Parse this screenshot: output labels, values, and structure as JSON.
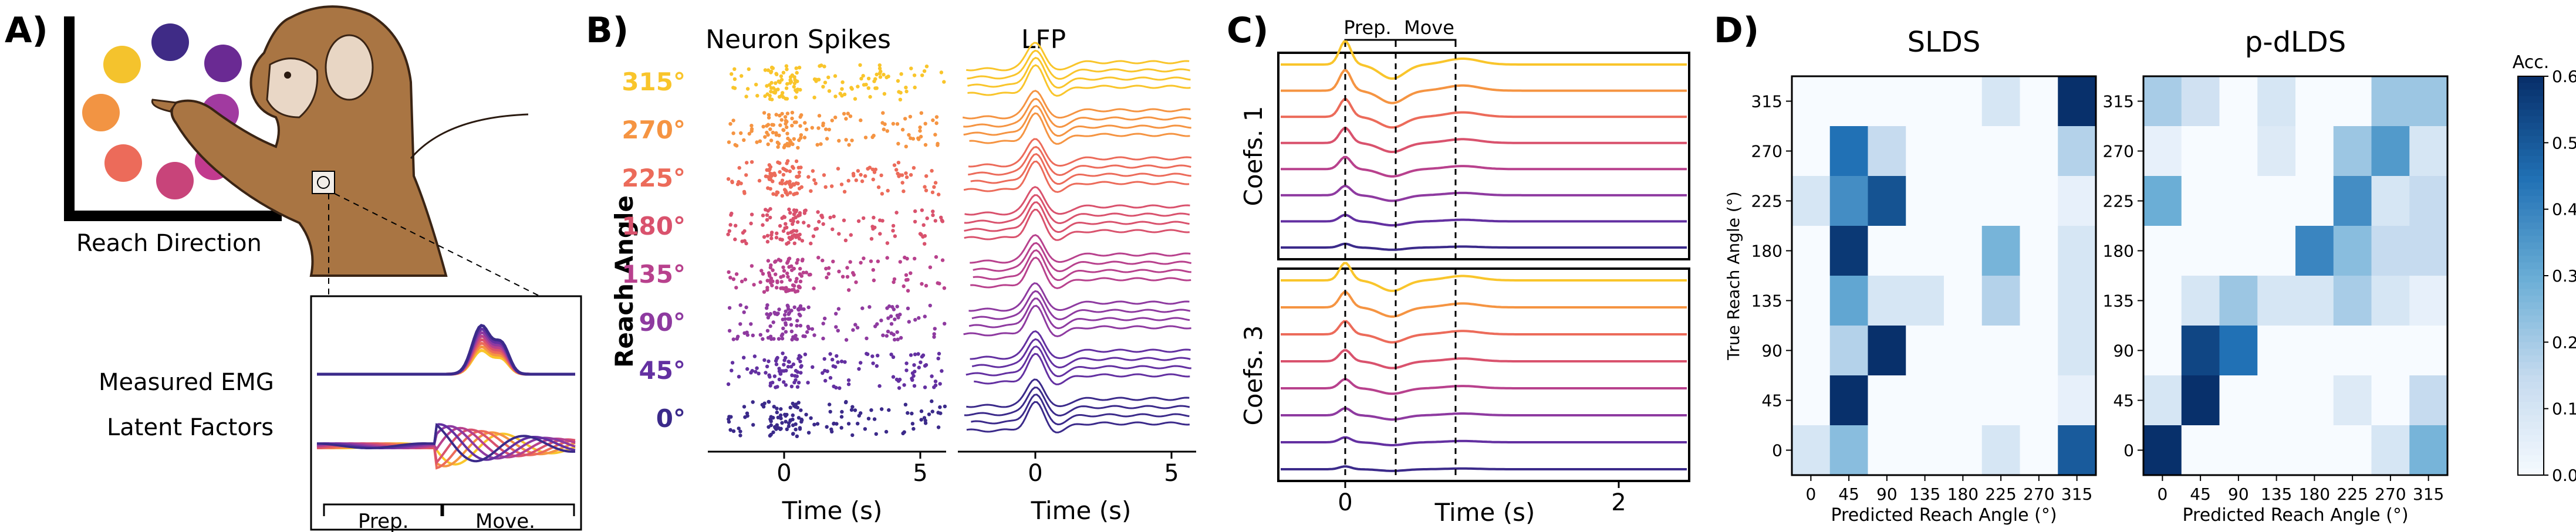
{
  "panel_a": {
    "label": "A)",
    "reach_direction_label": "Reach Direction",
    "measured_emg_label": "Measured EMG",
    "latent_factors_label": "Latent Factors",
    "prep_label": "Prep.",
    "move_label": "Move.",
    "target_colors": [
      "#3f2b86",
      "#6a2a93",
      "#f4c32d",
      "#a13aa0",
      "#f29443",
      "#c23a8e",
      "#ec6b5a",
      "#c8447a"
    ]
  },
  "panel_b": {
    "label": "B)",
    "ylabel": "Reach Angle",
    "angle_labels": [
      "315°",
      "270°",
      "225°",
      "180°",
      "135°",
      "90°",
      "45°",
      "0°"
    ],
    "angle_colors": [
      "#f9c52b",
      "#f59442",
      "#ec6b5a",
      "#d9526d",
      "#b8418d",
      "#8e3aa0",
      "#6330a1",
      "#3b2a8a"
    ],
    "spikes": {
      "title": "Neuron Spikes",
      "xlabel": "Time (s)",
      "xticks": [
        "0",
        "5"
      ]
    },
    "lfp": {
      "title": "LFP",
      "xlabel": "Time (s)",
      "xticks": [
        "0",
        "5"
      ]
    }
  },
  "panel_c": {
    "label": "C)",
    "prep_label": "Prep.",
    "move_label": "Move",
    "top_ylabel": "Coefs. 1",
    "bottom_ylabel": "Coefs. 3",
    "xlabel": "Time (s)",
    "xticks": [
      "0",
      "2"
    ]
  },
  "panel_d": {
    "label": "D)",
    "chart_data": [
      {
        "type": "heatmap",
        "title": "SLDS",
        "xlabel": "Predicted Reach Angle (°)",
        "ylabel": "True Reach Angle (°)",
        "x_categories": [
          "0",
          "45",
          "90",
          "135",
          "180",
          "225",
          "270",
          "315"
        ],
        "y_categories": [
          "315",
          "270",
          "225",
          "180",
          "135",
          "90",
          "45",
          "0"
        ],
        "values": [
          [
            0,
            0,
            0,
            0,
            0,
            0.1,
            0,
            0.6
          ],
          [
            0,
            0.45,
            0.15,
            0,
            0,
            0,
            0,
            0.18
          ],
          [
            0.1,
            0.38,
            0.52,
            0,
            0,
            0,
            0,
            0.05
          ],
          [
            0,
            0.58,
            0,
            0,
            0,
            0.28,
            0,
            0.1
          ],
          [
            0,
            0.32,
            0.1,
            0.1,
            0,
            0.18,
            0,
            0.1
          ],
          [
            0,
            0.18,
            0.6,
            0,
            0,
            0,
            0,
            0.1
          ],
          [
            0,
            0.6,
            0,
            0,
            0,
            0,
            0,
            0.05
          ],
          [
            0.1,
            0.25,
            0,
            0,
            0,
            0.1,
            0,
            0.5
          ]
        ],
        "vmin": 0,
        "vmax": 0.6
      },
      {
        "type": "heatmap",
        "title": "p-dLDS",
        "xlabel": "Predicted Reach Angle (°)",
        "ylabel": "",
        "x_categories": [
          "0",
          "45",
          "90",
          "135",
          "180",
          "225",
          "270",
          "315"
        ],
        "y_categories": [
          "315",
          "270",
          "225",
          "180",
          "135",
          "90",
          "45",
          "0"
        ],
        "values": [
          [
            0.2,
            0.12,
            0,
            0.1,
            0,
            0,
            0.22,
            0.22
          ],
          [
            0.05,
            0,
            0,
            0.08,
            0,
            0.22,
            0.35,
            0.1
          ],
          [
            0.3,
            0,
            0,
            0,
            0,
            0.38,
            0.1,
            0.15
          ],
          [
            0,
            0,
            0,
            0,
            0.4,
            0.25,
            0.15,
            0.15
          ],
          [
            0,
            0.1,
            0.22,
            0.1,
            0.1,
            0.2,
            0.1,
            0.05
          ],
          [
            0,
            0.55,
            0.45,
            0,
            0,
            0,
            0,
            0
          ],
          [
            0.1,
            0.6,
            0,
            0,
            0,
            0.08,
            0,
            0.15
          ],
          [
            0.6,
            0,
            0,
            0,
            0,
            0,
            0.1,
            0.28
          ]
        ],
        "vmin": 0,
        "vmax": 0.6
      }
    ],
    "colorbar": {
      "title": "Acc.",
      "ticks": [
        "0.0",
        "0.1",
        "0.2",
        "0.3",
        "0.4",
        "0.5",
        "0.6"
      ]
    }
  }
}
